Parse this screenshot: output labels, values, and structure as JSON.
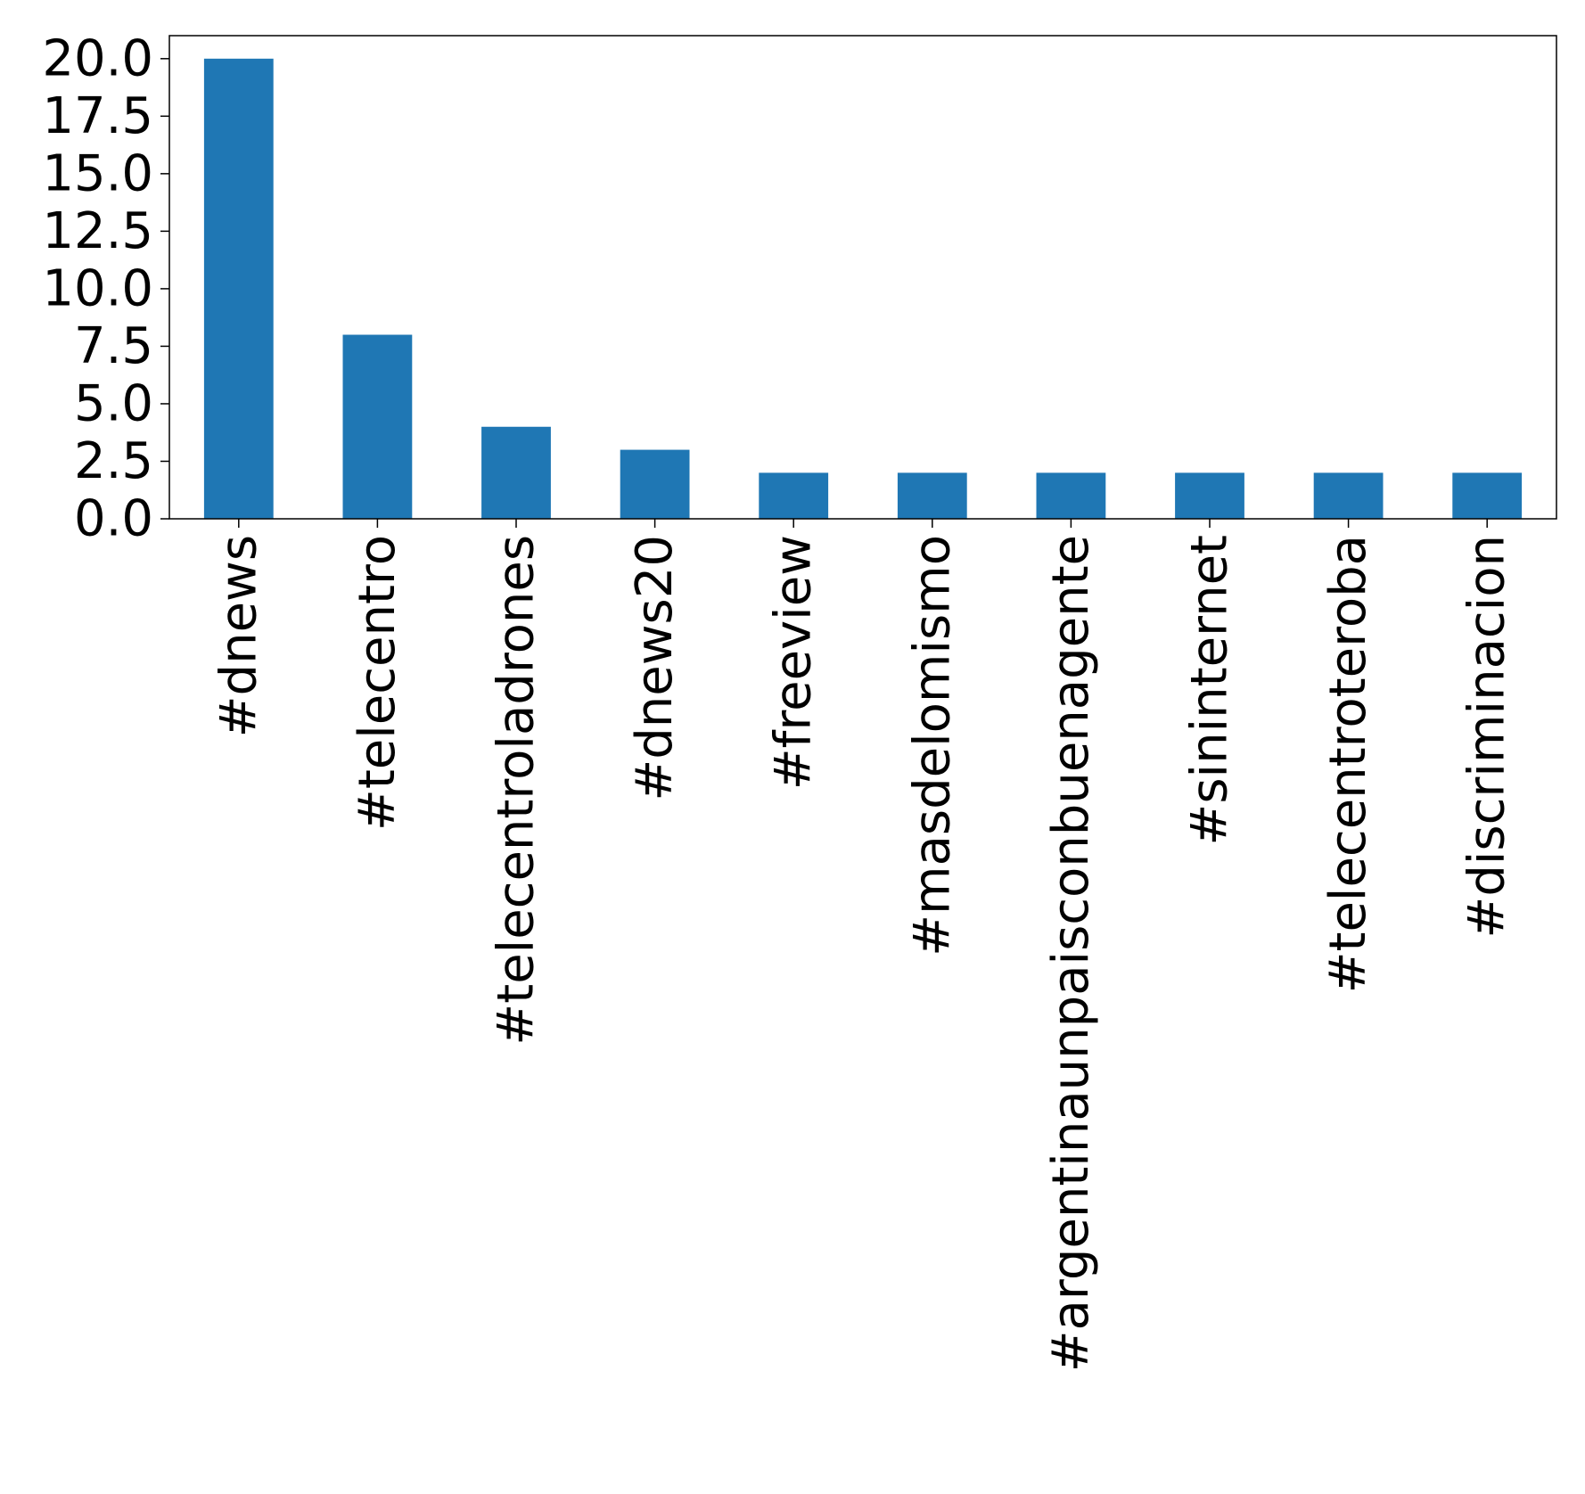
{
  "chart_data": {
    "type": "bar",
    "title": "",
    "xlabel": "",
    "ylabel": "",
    "categories": [
      "#dnews",
      "#telecentro",
      "#telecentroladrones",
      "#dnews20",
      "#freeview",
      "#masdelomismo",
      "#argentinaunpaisconbuenagente",
      "#sininternet",
      "#telecentroteroba",
      "#discriminacion"
    ],
    "values": [
      20,
      8,
      4,
      3,
      2,
      2,
      2,
      2,
      2,
      2
    ],
    "ylim": [
      0,
      21
    ],
    "yticks": [
      0,
      2.5,
      5,
      7.5,
      10,
      12.5,
      15,
      17.5,
      20
    ],
    "ytick_labels": [
      "0.0",
      "2.5",
      "5.0",
      "7.5",
      "10.0",
      "12.5",
      "15.0",
      "17.5",
      "20.0"
    ],
    "grid": false,
    "legend": "none",
    "colors": {
      "bar": "#1f77b4",
      "axis": "#000000",
      "background": "#ffffff"
    }
  }
}
